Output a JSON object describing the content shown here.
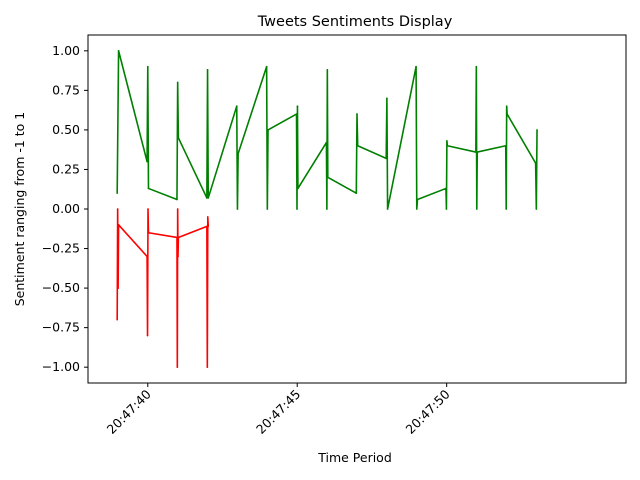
{
  "chart_data": {
    "type": "line",
    "title": "Tweets Sentiments Display",
    "xlabel": "Time Period",
    "ylabel": "Sentiment ranging from -1 to 1",
    "xlim": [
      "20:47:38",
      "20:47:56"
    ],
    "ylim": [
      -1.1,
      1.1
    ],
    "grid": false,
    "x_ticks": [
      "20:47:40",
      "20:47:45",
      "20:47:50"
    ],
    "y_ticks": [
      "1.00",
      "0.75",
      "0.50",
      "0.25",
      "0.00",
      "−0.25",
      "−0.50",
      "−0.75",
      "−1.00"
    ],
    "y_tick_values": [
      1.0,
      0.75,
      0.5,
      0.25,
      0.0,
      -0.25,
      -0.5,
      -0.75,
      -1.0
    ],
    "series": [
      {
        "color": "#008000",
        "points": [
          [
            "20:47:39",
            0.1
          ],
          [
            "20:47:39",
            1.0
          ],
          [
            "20:47:40",
            0.3
          ],
          [
            "20:47:40",
            0.9
          ],
          [
            "20:47:40",
            0.13
          ],
          [
            "20:47:41",
            0.06
          ],
          [
            "20:47:41",
            0.8
          ],
          [
            "20:47:41",
            0.45
          ],
          [
            "20:47:42",
            0.07
          ],
          [
            "20:47:42",
            0.88
          ],
          [
            "20:47:42",
            0.07
          ],
          [
            "20:47:43",
            0.65
          ],
          [
            "20:47:43",
            0.0
          ],
          [
            "20:47:43",
            0.35
          ],
          [
            "20:47:44",
            0.9
          ],
          [
            "20:47:44",
            0.0
          ],
          [
            "20:47:44",
            0.5
          ],
          [
            "20:47:45",
            0.6
          ],
          [
            "20:47:45",
            0.0
          ],
          [
            "20:47:45",
            0.65
          ],
          [
            "20:47:45",
            0.13
          ],
          [
            "20:47:46",
            0.42
          ],
          [
            "20:47:46",
            0.0
          ],
          [
            "20:47:46",
            0.88
          ],
          [
            "20:47:46",
            0.2
          ],
          [
            "20:47:47",
            0.1
          ],
          [
            "20:47:47",
            0.6
          ],
          [
            "20:47:47",
            0.4
          ],
          [
            "20:47:48",
            0.32
          ],
          [
            "20:47:48",
            0.7
          ],
          [
            "20:47:48",
            0.0
          ],
          [
            "20:47:49",
            0.9
          ],
          [
            "20:47:49",
            0.0
          ],
          [
            "20:47:49",
            0.06
          ],
          [
            "20:47:50",
            0.13
          ],
          [
            "20:47:50",
            0.0
          ],
          [
            "20:47:50",
            0.43
          ],
          [
            "20:47:50",
            0.4
          ],
          [
            "20:47:51",
            0.36
          ],
          [
            "20:47:51",
            0.9
          ],
          [
            "20:47:51",
            0.0
          ],
          [
            "20:47:51",
            0.36
          ],
          [
            "20:47:52",
            0.4
          ],
          [
            "20:47:52",
            0.0
          ],
          [
            "20:47:52",
            0.65
          ],
          [
            "20:47:52",
            0.6
          ],
          [
            "20:47:53",
            0.29
          ],
          [
            "20:47:53",
            0.0
          ],
          [
            "20:47:53",
            0.5
          ]
        ]
      },
      {
        "color": "#ff0000",
        "points": [
          [
            "20:47:39",
            -0.7
          ],
          [
            "20:47:39",
            0.0
          ],
          [
            "20:47:39",
            -0.5
          ],
          [
            "20:47:39",
            -0.1
          ],
          [
            "20:47:40",
            -0.3
          ],
          [
            "20:47:40",
            -0.8
          ],
          [
            "20:47:40",
            0.0
          ],
          [
            "20:47:40",
            -0.15
          ],
          [
            "20:47:41",
            -0.18
          ],
          [
            "20:47:41",
            -1.0
          ],
          [
            "20:47:41",
            0.0
          ],
          [
            "20:47:41",
            -0.3
          ],
          [
            "20:47:41",
            -0.18
          ],
          [
            "20:47:42",
            -0.11
          ],
          [
            "20:47:42",
            -1.0
          ],
          [
            "20:47:42",
            -0.05
          ],
          [
            "20:47:42",
            -0.11
          ]
        ]
      }
    ]
  }
}
